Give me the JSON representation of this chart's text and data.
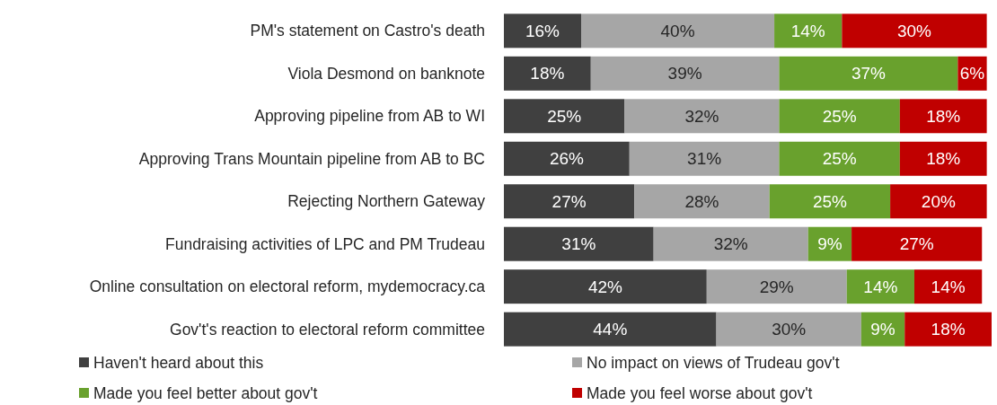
{
  "chart_data": {
    "type": "bar",
    "orientation": "horizontal",
    "stacked": true,
    "xlim": [
      0,
      101
    ],
    "tick_labels": "y",
    "legend": "bottom",
    "categories": [
      "PM's statement on Castro's death",
      "Viola Desmond on banknote",
      "Approving pipeline from AB to WI",
      "Approving Trans Mountain pipeline from AB to BC",
      "Rejecting Northern Gateway",
      "Fundraising activities of LPC and PM Trudeau",
      "Online consultation on electoral reform, mydemocracy.ca",
      "Gov't's reaction to electoral reform committee"
    ],
    "series": [
      {
        "name": "Haven't heard about this",
        "color": "#404040",
        "values": [
          16,
          18,
          25,
          26,
          27,
          31,
          42,
          44
        ],
        "value_labels": [
          "16%",
          "18%",
          "25%",
          "26%",
          "27%",
          "31%",
          "42%",
          "44%"
        ]
      },
      {
        "name": "No impact on views of Trudeau  gov't",
        "color": "#a6a6a6",
        "values": [
          40,
          39,
          32,
          31,
          28,
          32,
          29,
          30
        ],
        "value_labels": [
          "40%",
          "39%",
          "32%",
          "31%",
          "28%",
          "32%",
          "29%",
          "30%"
        ]
      },
      {
        "name": "Made you feel better about gov't",
        "color": "#69a12d",
        "values": [
          14,
          37,
          25,
          25,
          25,
          9,
          14,
          9
        ],
        "value_labels": [
          "14%",
          "37%",
          "25%",
          "25%",
          "25%",
          "9%",
          "14%",
          "9%"
        ]
      },
      {
        "name": "Made you feel worse about gov't",
        "color": "#c00000",
        "values": [
          30,
          6,
          18,
          18,
          20,
          27,
          14,
          18
        ],
        "value_labels": [
          "30%",
          "6%",
          "18%",
          "18%",
          "20%",
          "27%",
          "14%",
          "18%"
        ]
      }
    ]
  }
}
